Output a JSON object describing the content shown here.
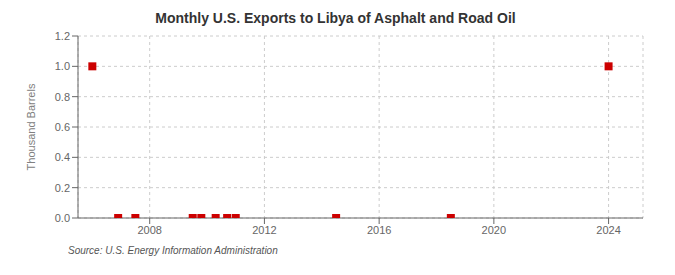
{
  "chart_data": {
    "type": "scatter",
    "title": "Monthly U.S. Exports to Libya of Asphalt and Road Oil",
    "ylabel": "Thousand Barrels",
    "annotations": [
      "Source: U.S. Energy Information Administration"
    ],
    "x": [
      2006.0,
      2006.9,
      2007.5,
      2009.5,
      2009.8,
      2010.3,
      2010.7,
      2011.0,
      2014.5,
      2018.5,
      2024.0
    ],
    "values": [
      1.0,
      0.0,
      0.0,
      0.0,
      0.0,
      0.0,
      0.0,
      0.0,
      0.0,
      0.0,
      1.0
    ],
    "color": "#cc0000",
    "marker": "square",
    "xlim": [
      2005.5,
      2025.2
    ],
    "xticks": [
      2008,
      2012,
      2016,
      2020,
      2024
    ],
    "ylim": [
      0,
      1.2
    ],
    "yticks": [
      {
        "value": 0,
        "label": "0.0"
      },
      0.2,
      0.4,
      0.6,
      0.8,
      {
        "value": 1,
        "label": "1.0"
      },
      1.2
    ],
    "grid": true
  }
}
